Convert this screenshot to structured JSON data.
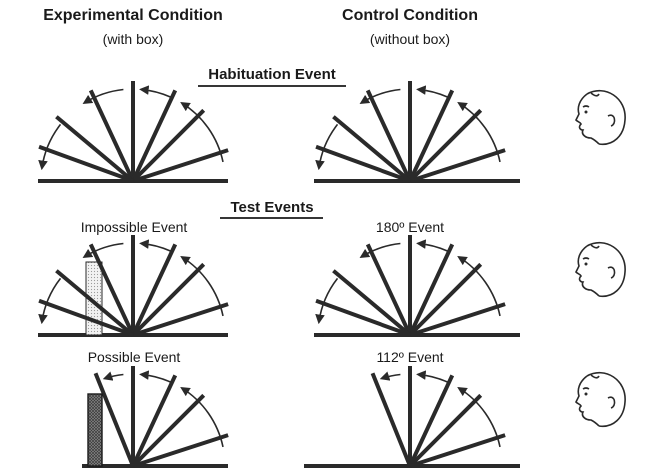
{
  "header": {
    "experimental_title": "Experimental Condition",
    "experimental_sub": "(with box)",
    "control_title": "Control Condition",
    "control_sub": "(without box)"
  },
  "sections": {
    "habituation": "Habituation Event",
    "test": "Test Events"
  },
  "panels": {
    "impossible": "Impossible Event",
    "deg180": "180º Event",
    "possible": "Possible Event",
    "deg112": "112º Event"
  },
  "colors": {
    "ink": "#2a2a2a",
    "box_dotted": "#cfcfcf",
    "box_solid": "#7a7a7a"
  },
  "icons": [
    "infant-face-icon"
  ]
}
